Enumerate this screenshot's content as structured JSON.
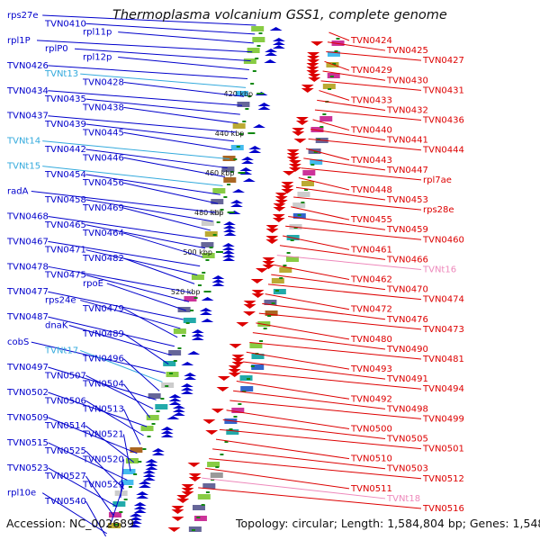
{
  "title": "Thermoplasma volcanium GSS1, complete genome",
  "accession": "Accession: NC_002689",
  "summary": "Topology: circular; Length: 1,584,804 bp; Genes: 1,548",
  "colors": {
    "forward_gene": "#0000cc",
    "reverse_gene": "#dd0000",
    "trna": "#33aadd",
    "pseudo_trna": "#ee88bb",
    "backbone": "#888888",
    "tick": "#118811"
  },
  "scale_ticks": [
    "420 kbp",
    "440 kbp",
    "460 kbp",
    "480 kbp",
    "500 kbp",
    "520 kbp"
  ],
  "left_labels": [
    {
      "text": "rps27e",
      "type": "fwd"
    },
    {
      "text": "TVN0410",
      "type": "fwd"
    },
    {
      "text": "rpl11p",
      "type": "fwd"
    },
    {
      "text": "rpl1P",
      "type": "fwd"
    },
    {
      "text": "rplP0",
      "type": "fwd"
    },
    {
      "text": "rpl12p",
      "type": "fwd"
    },
    {
      "text": "TVN0426",
      "type": "fwd"
    },
    {
      "text": "TVNt13",
      "type": "trna"
    },
    {
      "text": "TVN0428",
      "type": "fwd"
    },
    {
      "text": "TVN0434",
      "type": "fwd"
    },
    {
      "text": "TVN0435",
      "type": "fwd"
    },
    {
      "text": "TVN0438",
      "type": "fwd"
    },
    {
      "text": "TVN0437",
      "type": "fwd"
    },
    {
      "text": "TVN0439",
      "type": "fwd"
    },
    {
      "text": "TVN0445",
      "type": "fwd"
    },
    {
      "text": "TVNt14",
      "type": "trna"
    },
    {
      "text": "TVN0442",
      "type": "fwd"
    },
    {
      "text": "TVN0446",
      "type": "fwd"
    },
    {
      "text": "TVNt15",
      "type": "trna"
    },
    {
      "text": "TVN0454",
      "type": "fwd"
    },
    {
      "text": "TVN0456",
      "type": "fwd"
    },
    {
      "text": "radA",
      "type": "fwd"
    },
    {
      "text": "TVN0458",
      "type": "fwd"
    },
    {
      "text": "TVN0469",
      "type": "fwd"
    },
    {
      "text": "TVN0468",
      "type": "fwd"
    },
    {
      "text": "TVN0465",
      "type": "fwd"
    },
    {
      "text": "TVN0464",
      "type": "fwd"
    },
    {
      "text": "TVN0467",
      "type": "fwd"
    },
    {
      "text": "TVN0471",
      "type": "fwd"
    },
    {
      "text": "TVN0482",
      "type": "fwd"
    },
    {
      "text": "TVN0478",
      "type": "fwd"
    },
    {
      "text": "TVN0475",
      "type": "fwd"
    },
    {
      "text": "rpoE",
      "type": "fwd"
    },
    {
      "text": "TVN0477",
      "type": "fwd"
    },
    {
      "text": "rps24e",
      "type": "fwd"
    },
    {
      "text": "TVN0479",
      "type": "fwd"
    },
    {
      "text": "TVN0487",
      "type": "fwd"
    },
    {
      "text": "dnaK",
      "type": "fwd"
    },
    {
      "text": "TVN0489",
      "type": "fwd"
    },
    {
      "text": "cobS",
      "type": "fwd"
    },
    {
      "text": "TVNt17",
      "type": "trna"
    },
    {
      "text": "TVN0496",
      "type": "fwd"
    },
    {
      "text": "TVN0497",
      "type": "fwd"
    },
    {
      "text": "TVN0507",
      "type": "fwd"
    },
    {
      "text": "TVN0504",
      "type": "fwd"
    },
    {
      "text": "TVN0502",
      "type": "fwd"
    },
    {
      "text": "TVN0506",
      "type": "fwd"
    },
    {
      "text": "TVN0513",
      "type": "fwd"
    },
    {
      "text": "TVN0509",
      "type": "fwd"
    },
    {
      "text": "TVN0514",
      "type": "fwd"
    },
    {
      "text": "TVN0521",
      "type": "fwd"
    },
    {
      "text": "TVN0515",
      "type": "fwd"
    },
    {
      "text": "TVN0525",
      "type": "fwd"
    },
    {
      "text": "TVN0520",
      "type": "fwd"
    },
    {
      "text": "TVN0523",
      "type": "fwd"
    },
    {
      "text": "TVN0527",
      "type": "fwd"
    },
    {
      "text": "TVN0529",
      "type": "fwd"
    },
    {
      "text": "rpl10e",
      "type": "fwd"
    },
    {
      "text": "TVN0540",
      "type": "fwd"
    }
  ],
  "right_labels": [
    {
      "text": "TVN0424",
      "type": "rev"
    },
    {
      "text": "TVN0425",
      "type": "rev"
    },
    {
      "text": "TVN0427",
      "type": "rev"
    },
    {
      "text": "TVN0429",
      "type": "rev"
    },
    {
      "text": "TVN0430",
      "type": "rev"
    },
    {
      "text": "TVN0431",
      "type": "rev"
    },
    {
      "text": "TVN0433",
      "type": "rev"
    },
    {
      "text": "TVN0432",
      "type": "rev"
    },
    {
      "text": "TVN0436",
      "type": "rev"
    },
    {
      "text": "TVN0440",
      "type": "rev"
    },
    {
      "text": "TVN0441",
      "type": "rev"
    },
    {
      "text": "TVN0444",
      "type": "rev"
    },
    {
      "text": "TVN0443",
      "type": "rev"
    },
    {
      "text": "TVN0447",
      "type": "rev"
    },
    {
      "text": "rpl7ae",
      "type": "rev"
    },
    {
      "text": "TVN0448",
      "type": "rev"
    },
    {
      "text": "TVN0453",
      "type": "rev"
    },
    {
      "text": "rps28e",
      "type": "rev"
    },
    {
      "text": "TVN0455",
      "type": "rev"
    },
    {
      "text": "TVN0459",
      "type": "rev"
    },
    {
      "text": "TVN0460",
      "type": "rev"
    },
    {
      "text": "TVN0461",
      "type": "rev"
    },
    {
      "text": "TVN0466",
      "type": "rev"
    },
    {
      "text": "TVNt16",
      "type": "pseudo"
    },
    {
      "text": "TVN0462",
      "type": "rev"
    },
    {
      "text": "TVN0470",
      "type": "rev"
    },
    {
      "text": "TVN0474",
      "type": "rev"
    },
    {
      "text": "TVN0472",
      "type": "rev"
    },
    {
      "text": "TVN0476",
      "type": "rev"
    },
    {
      "text": "TVN0473",
      "type": "rev"
    },
    {
      "text": "TVN0480",
      "type": "rev"
    },
    {
      "text": "TVN0490",
      "type": "rev"
    },
    {
      "text": "TVN0481",
      "type": "rev"
    },
    {
      "text": "TVN0493",
      "type": "rev"
    },
    {
      "text": "TVN0491",
      "type": "rev"
    },
    {
      "text": "TVN0494",
      "type": "rev"
    },
    {
      "text": "TVN0492",
      "type": "rev"
    },
    {
      "text": "TVN0498",
      "type": "rev"
    },
    {
      "text": "TVN0499",
      "type": "rev"
    },
    {
      "text": "TVN0500",
      "type": "rev"
    },
    {
      "text": "TVN0505",
      "type": "rev"
    },
    {
      "text": "TVN0501",
      "type": "rev"
    },
    {
      "text": "TVN0510",
      "type": "rev"
    },
    {
      "text": "TVN0503",
      "type": "rev"
    },
    {
      "text": "TVN0512",
      "type": "rev"
    },
    {
      "text": "TVN0511",
      "type": "rev"
    },
    {
      "text": "TVNt18",
      "type": "pseudo"
    },
    {
      "text": "TVN0516",
      "type": "rev"
    }
  ]
}
